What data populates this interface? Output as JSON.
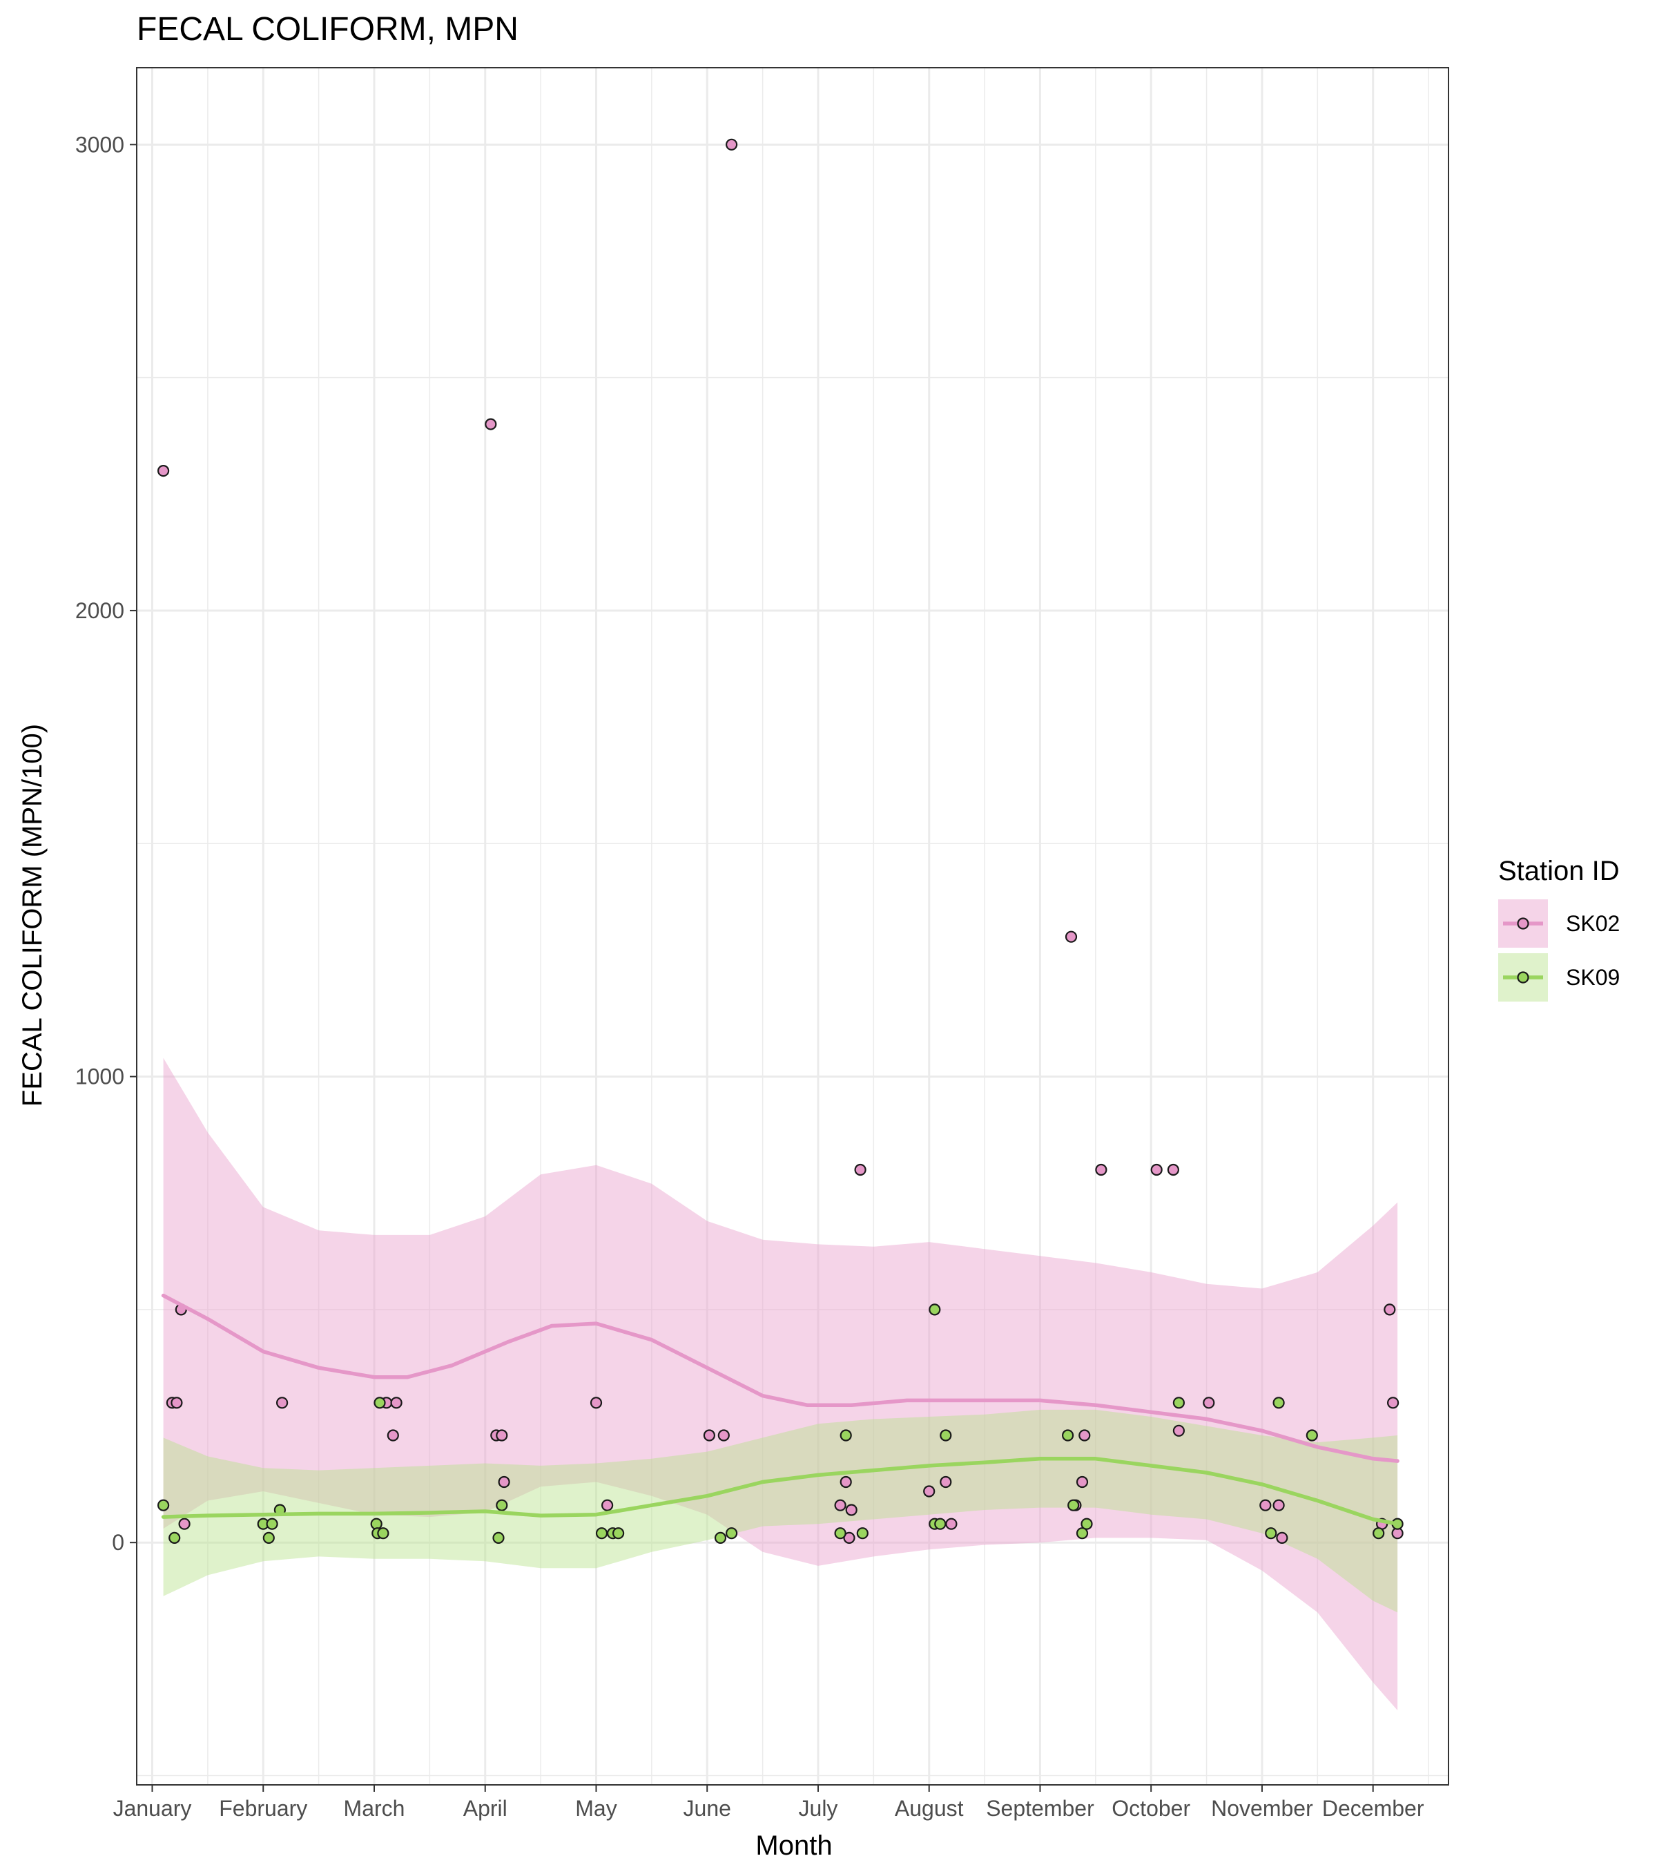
{
  "chart_data": {
    "type": "scatter",
    "title": "FECAL COLIFORM, MPN",
    "xlabel": "Month",
    "ylabel": "FECAL COLIFORM (MPN/100)",
    "x_tick_labels": [
      "January",
      "February",
      "March",
      "April",
      "May",
      "June",
      "July",
      "August",
      "September",
      "October",
      "November",
      "December"
    ],
    "y_ticks": [
      0,
      1000,
      2000,
      3000
    ],
    "y_tick_labels": [
      "0",
      "1000",
      "2000",
      "3000"
    ],
    "xlim": [
      0.86,
      12.68
    ],
    "ylim": [
      -520,
      3165
    ],
    "grid": true,
    "legend": {
      "title": "Station ID",
      "placement": "right"
    },
    "series": [
      {
        "name": "SK02",
        "color": "#E597C8",
        "fill": "#E8A0CC",
        "points": [
          [
            1.1,
            2300
          ],
          [
            1.18,
            300
          ],
          [
            1.22,
            300
          ],
          [
            1.26,
            500
          ],
          [
            1.29,
            40
          ],
          [
            2.17,
            300
          ],
          [
            3.11,
            300
          ],
          [
            3.17,
            230
          ],
          [
            3.2,
            300
          ],
          [
            4.05,
            2400
          ],
          [
            4.1,
            230
          ],
          [
            4.15,
            230
          ],
          [
            4.17,
            130
          ],
          [
            5.0,
            300
          ],
          [
            5.1,
            80
          ],
          [
            6.02,
            230
          ],
          [
            6.15,
            230
          ],
          [
            6.22,
            3000
          ],
          [
            7.2,
            80
          ],
          [
            7.25,
            130
          ],
          [
            7.3,
            70
          ],
          [
            7.28,
            10
          ],
          [
            7.38,
            800
          ],
          [
            8.0,
            110
          ],
          [
            8.15,
            130
          ],
          [
            8.2,
            40
          ],
          [
            9.28,
            1300
          ],
          [
            9.32,
            80
          ],
          [
            9.4,
            230
          ],
          [
            9.38,
            130
          ],
          [
            9.55,
            800
          ],
          [
            10.05,
            800
          ],
          [
            10.2,
            800
          ],
          [
            10.25,
            240
          ],
          [
            10.52,
            300
          ],
          [
            11.03,
            80
          ],
          [
            11.15,
            80
          ],
          [
            11.18,
            10
          ],
          [
            12.08,
            40
          ],
          [
            12.15,
            500
          ],
          [
            12.18,
            300
          ],
          [
            12.22,
            20
          ]
        ],
        "smooth": [
          [
            1.1,
            530
          ],
          [
            1.5,
            480
          ],
          [
            2.0,
            410
          ],
          [
            2.5,
            375
          ],
          [
            3.0,
            355
          ],
          [
            3.3,
            355
          ],
          [
            3.7,
            380
          ],
          [
            4.2,
            430
          ],
          [
            4.6,
            465
          ],
          [
            5.0,
            470
          ],
          [
            5.5,
            435
          ],
          [
            6.0,
            375
          ],
          [
            6.5,
            315
          ],
          [
            6.9,
            295
          ],
          [
            7.3,
            295
          ],
          [
            7.8,
            305
          ],
          [
            8.5,
            305
          ],
          [
            9.0,
            305
          ],
          [
            9.5,
            295
          ],
          [
            10.0,
            280
          ],
          [
            10.5,
            265
          ],
          [
            11.0,
            240
          ],
          [
            11.5,
            205
          ],
          [
            12.0,
            180
          ],
          [
            12.22,
            175
          ]
        ],
        "band_upper": [
          [
            1.1,
            1040
          ],
          [
            1.5,
            880
          ],
          [
            2.0,
            720
          ],
          [
            2.5,
            670
          ],
          [
            3.0,
            660
          ],
          [
            3.5,
            660
          ],
          [
            4.0,
            700
          ],
          [
            4.5,
            790
          ],
          [
            5.0,
            810
          ],
          [
            5.5,
            770
          ],
          [
            6.0,
            690
          ],
          [
            6.5,
            650
          ],
          [
            7.0,
            640
          ],
          [
            7.5,
            635
          ],
          [
            8.0,
            645
          ],
          [
            8.5,
            630
          ],
          [
            9.0,
            615
          ],
          [
            9.5,
            600
          ],
          [
            10.0,
            580
          ],
          [
            10.5,
            555
          ],
          [
            11.0,
            545
          ],
          [
            11.5,
            580
          ],
          [
            12.0,
            680
          ],
          [
            12.22,
            730
          ]
        ],
        "band_lower": [
          [
            1.1,
            30
          ],
          [
            1.5,
            90
          ],
          [
            2.0,
            110
          ],
          [
            2.5,
            85
          ],
          [
            3.0,
            60
          ],
          [
            3.5,
            55
          ],
          [
            4.0,
            65
          ],
          [
            4.5,
            120
          ],
          [
            5.0,
            130
          ],
          [
            5.5,
            100
          ],
          [
            6.0,
            60
          ],
          [
            6.5,
            -20
          ],
          [
            7.0,
            -50
          ],
          [
            7.5,
            -30
          ],
          [
            8.0,
            -15
          ],
          [
            8.5,
            -5
          ],
          [
            9.0,
            0
          ],
          [
            9.5,
            10
          ],
          [
            10.0,
            10
          ],
          [
            10.5,
            5
          ],
          [
            11.0,
            -60
          ],
          [
            11.5,
            -150
          ],
          [
            12.0,
            -300
          ],
          [
            12.22,
            -360
          ]
        ]
      },
      {
        "name": "SK09",
        "color": "#9AD55F",
        "fill": "#B9E28C",
        "points": [
          [
            1.1,
            80
          ],
          [
            1.2,
            10
          ],
          [
            2.0,
            40
          ],
          [
            2.05,
            10
          ],
          [
            2.08,
            40
          ],
          [
            2.15,
            70
          ],
          [
            3.02,
            40
          ],
          [
            3.03,
            20
          ],
          [
            3.05,
            300
          ],
          [
            3.08,
            20
          ],
          [
            4.12,
            10
          ],
          [
            4.15,
            80
          ],
          [
            5.05,
            20
          ],
          [
            5.15,
            20
          ],
          [
            5.2,
            20
          ],
          [
            6.12,
            10
          ],
          [
            6.22,
            20
          ],
          [
            7.2,
            20
          ],
          [
            7.25,
            230
          ],
          [
            7.4,
            20
          ],
          [
            8.05,
            500
          ],
          [
            8.05,
            40
          ],
          [
            8.1,
            40
          ],
          [
            8.15,
            230
          ],
          [
            9.25,
            230
          ],
          [
            9.3,
            80
          ],
          [
            9.38,
            20
          ],
          [
            9.42,
            40
          ],
          [
            10.25,
            300
          ],
          [
            11.08,
            20
          ],
          [
            11.15,
            300
          ],
          [
            11.45,
            230
          ],
          [
            12.05,
            20
          ],
          [
            12.22,
            40
          ]
        ],
        "smooth": [
          [
            1.1,
            55
          ],
          [
            1.5,
            58
          ],
          [
            2.0,
            60
          ],
          [
            2.5,
            62
          ],
          [
            3.0,
            62
          ],
          [
            3.5,
            64
          ],
          [
            4.0,
            67
          ],
          [
            4.5,
            58
          ],
          [
            5.0,
            60
          ],
          [
            5.5,
            80
          ],
          [
            6.0,
            100
          ],
          [
            6.5,
            130
          ],
          [
            7.0,
            145
          ],
          [
            7.5,
            155
          ],
          [
            8.0,
            165
          ],
          [
            8.5,
            172
          ],
          [
            9.0,
            180
          ],
          [
            9.5,
            180
          ],
          [
            10.0,
            165
          ],
          [
            10.5,
            150
          ],
          [
            11.0,
            125
          ],
          [
            11.5,
            90
          ],
          [
            12.0,
            50
          ],
          [
            12.22,
            40
          ]
        ],
        "band_upper": [
          [
            1.1,
            225
          ],
          [
            1.5,
            185
          ],
          [
            2.0,
            160
          ],
          [
            2.5,
            155
          ],
          [
            3.0,
            160
          ],
          [
            3.5,
            165
          ],
          [
            4.0,
            170
          ],
          [
            4.5,
            165
          ],
          [
            5.0,
            170
          ],
          [
            5.5,
            180
          ],
          [
            6.0,
            195
          ],
          [
            6.5,
            225
          ],
          [
            7.0,
            255
          ],
          [
            7.5,
            265
          ],
          [
            8.0,
            270
          ],
          [
            8.5,
            275
          ],
          [
            9.0,
            285
          ],
          [
            9.5,
            285
          ],
          [
            10.0,
            270
          ],
          [
            10.5,
            250
          ],
          [
            11.0,
            230
          ],
          [
            11.5,
            215
          ],
          [
            12.0,
            225
          ],
          [
            12.22,
            230
          ]
        ],
        "band_lower": [
          [
            1.1,
            -115
          ],
          [
            1.5,
            -70
          ],
          [
            2.0,
            -40
          ],
          [
            2.5,
            -30
          ],
          [
            3.0,
            -35
          ],
          [
            3.5,
            -35
          ],
          [
            4.0,
            -40
          ],
          [
            4.5,
            -55
          ],
          [
            5.0,
            -55
          ],
          [
            5.5,
            -20
          ],
          [
            6.0,
            5
          ],
          [
            6.5,
            35
          ],
          [
            7.0,
            40
          ],
          [
            7.5,
            50
          ],
          [
            8.0,
            60
          ],
          [
            8.5,
            70
          ],
          [
            9.0,
            75
          ],
          [
            9.5,
            75
          ],
          [
            10.0,
            60
          ],
          [
            10.5,
            50
          ],
          [
            11.0,
            20
          ],
          [
            11.5,
            -35
          ],
          [
            12.0,
            -125
          ],
          [
            12.22,
            -150
          ]
        ]
      }
    ]
  }
}
